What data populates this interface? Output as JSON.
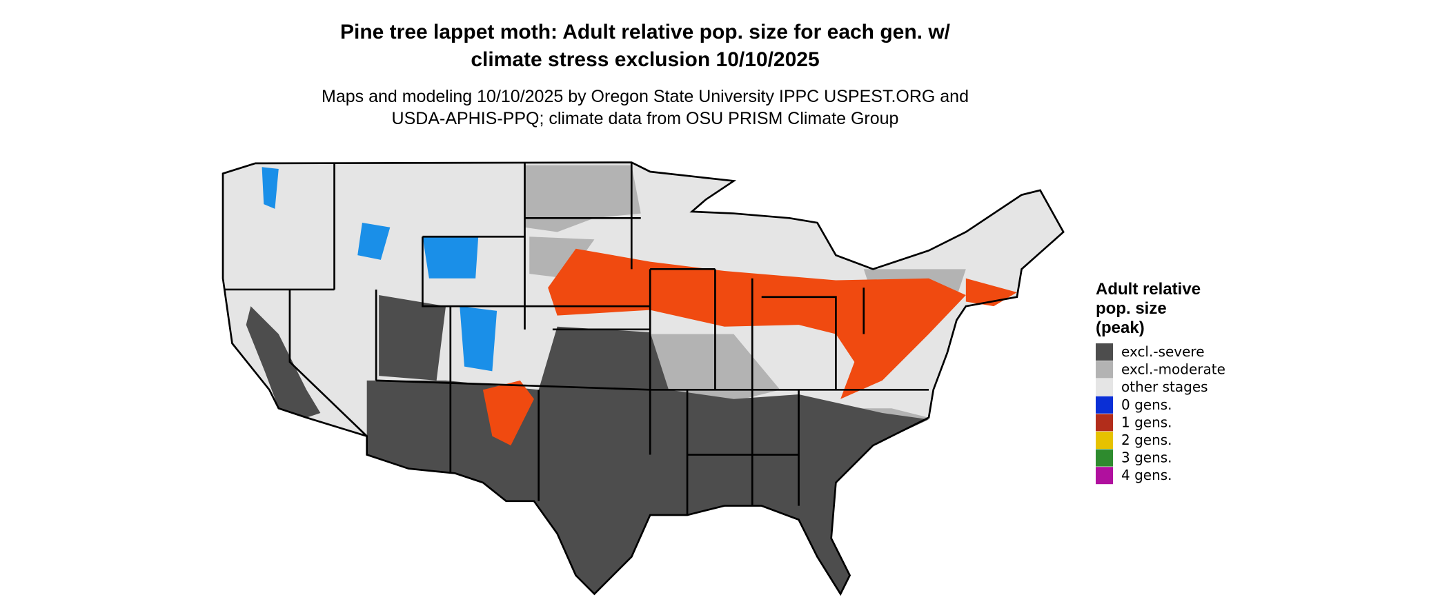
{
  "header": {
    "title": [
      "Pine tree lappet moth: Adult relative pop. size for each gen. w/",
      "climate stress exclusion 10/10/2025"
    ],
    "subtitle": [
      "Maps and modeling 10/10/2025 by Oregon State University IPPC USPEST.ORG and",
      "USDA-APHIS-PPQ; climate data from OSU PRISM Climate Group"
    ]
  },
  "legend": {
    "title": [
      "Adult relative",
      "pop. size",
      "(peak)"
    ],
    "items": [
      {
        "label": "excl.-severe",
        "color": "#4d4d4d"
      },
      {
        "label": "excl.-moderate",
        "color": "#b3b3b3"
      },
      {
        "label": "other stages",
        "color": "#e5e5e5"
      },
      {
        "label": "0 gens.",
        "color": "#0a2fd6"
      },
      {
        "label": "1 gens.",
        "color": "#b22d1b"
      },
      {
        "label": "2 gens.",
        "color": "#e6c200"
      },
      {
        "label": "3 gens.",
        "color": "#2e8b2e"
      },
      {
        "label": "4 gens.",
        "color": "#b0109e"
      }
    ]
  }
}
